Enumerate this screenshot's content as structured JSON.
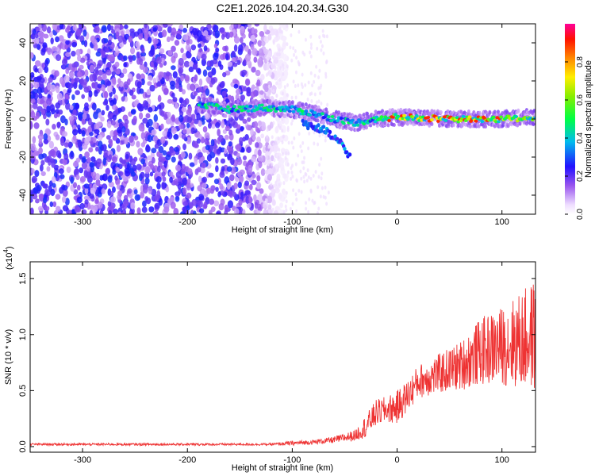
{
  "title": "C2E1.2026.104.20.34.G30",
  "chart_data": [
    {
      "type": "heatmap",
      "xlabel": "Height of straight line (km)",
      "ylabel": "Frequency (Hz)",
      "xlim": [
        -350,
        132
      ],
      "ylim": [
        -50,
        50
      ],
      "xticks": [
        -300,
        -200,
        -100,
        0,
        100
      ],
      "yticks": [
        -40,
        -20,
        0,
        20,
        40
      ],
      "colorbar": {
        "label": "Normalized spectral amplitude",
        "range": [
          0,
          1
        ],
        "ticks": [
          "0.0",
          "0.2",
          "0.4",
          "0.6",
          "0.8"
        ]
      },
      "features": {
        "noise_region_x": [
          -350,
          -125
        ],
        "signal_track_x": [
          -190,
          132
        ],
        "signal_curve": [
          {
            "x": -190,
            "y": 8
          },
          {
            "x": -160,
            "y": 5
          },
          {
            "x": -130,
            "y": 6
          },
          {
            "x": -100,
            "y": 5
          },
          {
            "x": -80,
            "y": 3
          },
          {
            "x": -60,
            "y": 0
          },
          {
            "x": -40,
            "y": -2
          },
          {
            "x": -20,
            "y": 0
          },
          {
            "x": 0,
            "y": 1
          },
          {
            "x": 50,
            "y": 0
          },
          {
            "x": 100,
            "y": 0
          },
          {
            "x": 132,
            "y": 1
          }
        ],
        "branch_curve": [
          {
            "x": -90,
            "y": -2
          },
          {
            "x": -70,
            "y": -6
          },
          {
            "x": -55,
            "y": -12
          },
          {
            "x": -45,
            "y": -20
          }
        ]
      }
    },
    {
      "type": "line",
      "xlabel": "Height of straight line (km)",
      "ylabel": "SNR (10 * v/v)",
      "multiplier": "(x10",
      "multiplier_exp": "4",
      "xlim": [
        -350,
        132
      ],
      "ylim": [
        -0.05,
        1.65
      ],
      "xticks": [
        -300,
        -200,
        -100,
        0,
        100
      ],
      "yticks": [
        "0.0",
        "0.5",
        "1.0",
        "1.5"
      ],
      "color": "#ee3333",
      "series": [
        {
          "points": [
            {
              "x": -350,
              "mean": 0.02,
              "amp": 0.01
            },
            {
              "x": -200,
              "mean": 0.02,
              "amp": 0.01
            },
            {
              "x": -120,
              "mean": 0.02,
              "amp": 0.01
            },
            {
              "x": -100,
              "mean": 0.03,
              "amp": 0.02
            },
            {
              "x": -80,
              "mean": 0.04,
              "amp": 0.02
            },
            {
              "x": -60,
              "mean": 0.06,
              "amp": 0.03
            },
            {
              "x": -40,
              "mean": 0.1,
              "amp": 0.05
            },
            {
              "x": -30,
              "mean": 0.18,
              "amp": 0.1
            },
            {
              "x": -20,
              "mean": 0.3,
              "amp": 0.12
            },
            {
              "x": -10,
              "mean": 0.33,
              "amp": 0.12
            },
            {
              "x": 0,
              "mean": 0.35,
              "amp": 0.15
            },
            {
              "x": 10,
              "mean": 0.45,
              "amp": 0.15
            },
            {
              "x": 20,
              "mean": 0.58,
              "amp": 0.15
            },
            {
              "x": 40,
              "mean": 0.65,
              "amp": 0.18
            },
            {
              "x": 60,
              "mean": 0.72,
              "amp": 0.22
            },
            {
              "x": 80,
              "mean": 0.85,
              "amp": 0.3
            },
            {
              "x": 100,
              "mean": 0.9,
              "amp": 0.35
            },
            {
              "x": 120,
              "mean": 0.95,
              "amp": 0.45
            },
            {
              "x": 132,
              "mean": 1.0,
              "amp": 0.5
            }
          ]
        }
      ]
    }
  ]
}
